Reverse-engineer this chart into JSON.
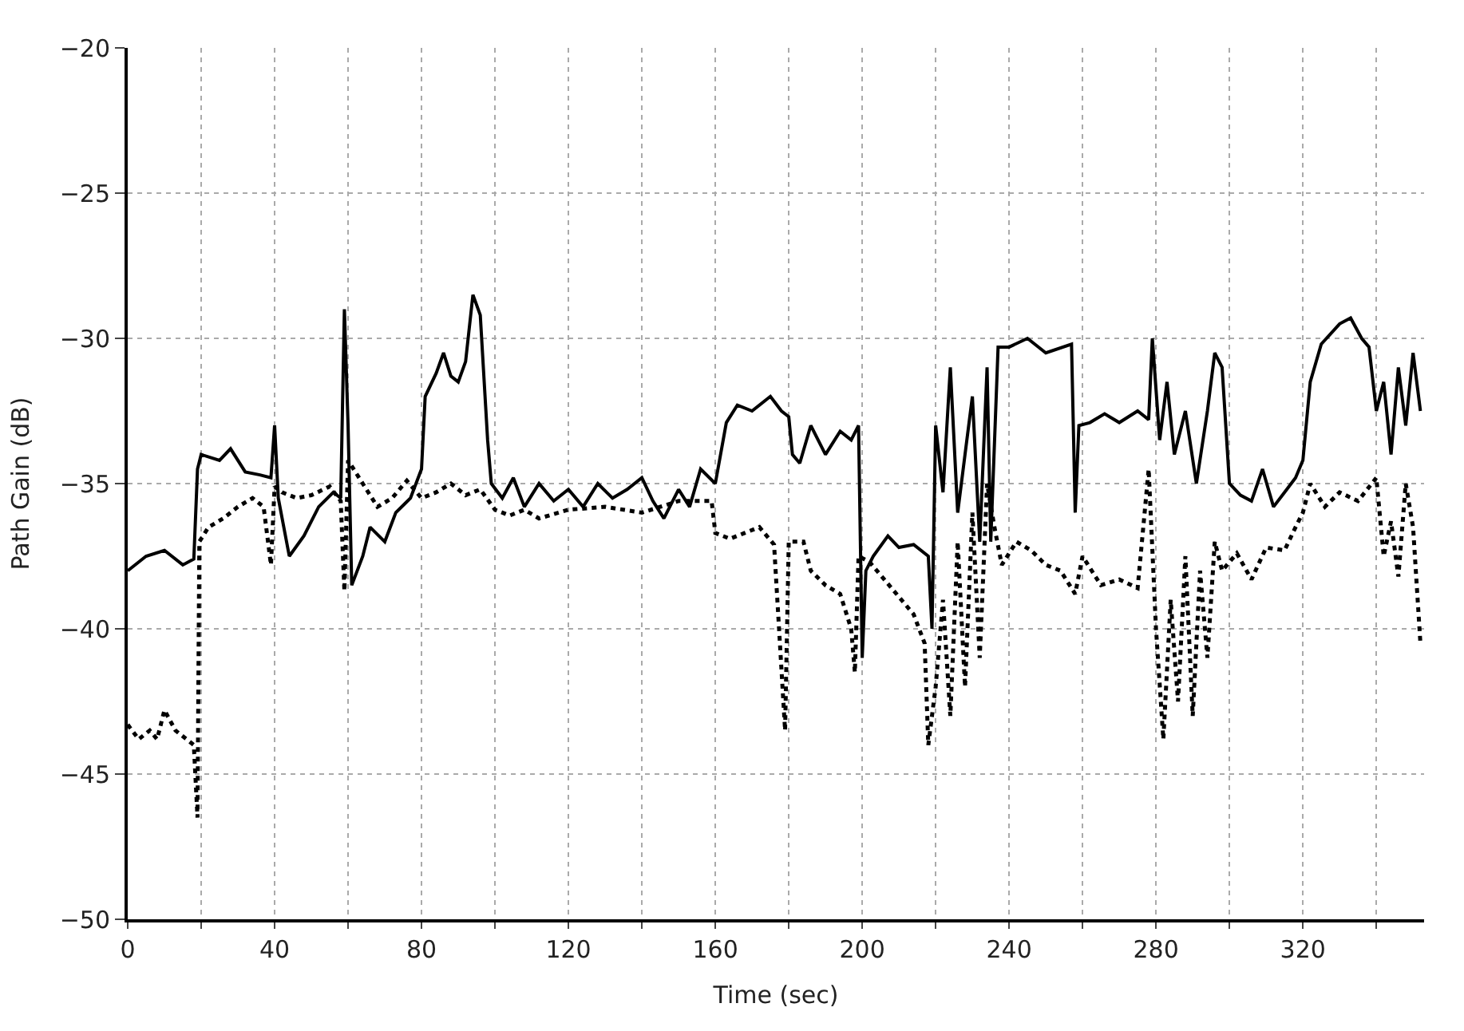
{
  "chart_data": {
    "type": "line",
    "xlabel": "Time (sec)",
    "ylabel": "Path Gain (dB)",
    "xlim": [
      0,
      353
    ],
    "ylim": [
      -50,
      -20
    ],
    "xticks": [
      0,
      {
        "value": 20,
        "label": null
      },
      40,
      {
        "value": 60,
        "label": null
      },
      80,
      {
        "value": 100,
        "label": null
      },
      120,
      {
        "value": 140,
        "label": null
      },
      160,
      {
        "value": 180,
        "label": null
      },
      200,
      {
        "value": 220,
        "label": null
      },
      240,
      {
        "value": 260,
        "label": null
      },
      280,
      {
        "value": 300,
        "label": null
      },
      320,
      {
        "value": 340,
        "label": null
      }
    ],
    "yticks": [
      {
        "value": -50,
        "label": "−50"
      },
      {
        "value": -45,
        "label": "−45"
      },
      {
        "value": -40,
        "label": "−40"
      },
      {
        "value": -35,
        "label": "−35"
      },
      {
        "value": -30,
        "label": "−30"
      },
      {
        "value": -25,
        "label": "−25"
      },
      {
        "value": -20,
        "label": "−20"
      }
    ],
    "grid": true,
    "marker": "none",
    "series": [
      {
        "color": "#000000",
        "line_style": "solid",
        "x": [
          0,
          5,
          10,
          15,
          18,
          19,
          20,
          25,
          28,
          32,
          36,
          39,
          40,
          41,
          44,
          48,
          52,
          56,
          58,
          59,
          60,
          61,
          64,
          66,
          70,
          73,
          77,
          80,
          81,
          84,
          86,
          88,
          90,
          92,
          94,
          96,
          98,
          99,
          102,
          105,
          108,
          112,
          116,
          120,
          124,
          128,
          132,
          136,
          140,
          143,
          146,
          150,
          153,
          156,
          160,
          163,
          166,
          170,
          175,
          178,
          180,
          181,
          183,
          186,
          190,
          194,
          197,
          199,
          200,
          201,
          203,
          207,
          210,
          214,
          218,
          219,
          220,
          222,
          224,
          226,
          228,
          230,
          232,
          234,
          235,
          237,
          240,
          245,
          250,
          257,
          258,
          259,
          262,
          266,
          270,
          275,
          278,
          279,
          281,
          283,
          285,
          288,
          291,
          294,
          296,
          298,
          300,
          303,
          306,
          309,
          312,
          315,
          318,
          320,
          322,
          325,
          330,
          333,
          336,
          338,
          340,
          342,
          344,
          346,
          348,
          350,
          352
        ],
        "values": [
          -38,
          -37.5,
          -37.3,
          -37.8,
          -37.6,
          -34.5,
          -34,
          -34.2,
          -33.8,
          -34.6,
          -34.7,
          -34.8,
          -33,
          -35.5,
          -37.5,
          -36.8,
          -35.8,
          -35.3,
          -35.5,
          -29,
          -33,
          -38.5,
          -37.5,
          -36.5,
          -37,
          -36,
          -35.5,
          -34.5,
          -32,
          -31.2,
          -30.5,
          -31.3,
          -31.5,
          -30.8,
          -28.5,
          -29.2,
          -33.5,
          -35,
          -35.5,
          -34.8,
          -35.8,
          -35,
          -35.6,
          -35.2,
          -35.8,
          -35,
          -35.5,
          -35.2,
          -34.8,
          -35.6,
          -36.2,
          -35.2,
          -35.8,
          -34.5,
          -35,
          -32.9,
          -32.3,
          -32.5,
          -32,
          -32.5,
          -32.7,
          -34,
          -34.3,
          -33,
          -34,
          -33.2,
          -33.5,
          -33,
          -41,
          -38,
          -37.5,
          -36.8,
          -37.2,
          -37.1,
          -37.5,
          -40,
          -33,
          -35.3,
          -31,
          -36,
          -34,
          -32,
          -37,
          -31,
          -37,
          -30.3,
          -30.3,
          -30,
          -30.5,
          -30.2,
          -36,
          -33,
          -32.9,
          -32.6,
          -32.9,
          -32.5,
          -32.8,
          -30,
          -33.5,
          -31.5,
          -34,
          -32.5,
          -35,
          -32.5,
          -30.5,
          -31,
          -35,
          -35.4,
          -35.6,
          -34.5,
          -35.8,
          -35.3,
          -34.8,
          -34.2,
          -31.5,
          -30.2,
          -29.5,
          -29.3,
          -30,
          -30.3,
          -32.5,
          -31.5,
          -34,
          -31,
          -33,
          -30.5,
          -32.5
        ]
      },
      {
        "color": "#000000",
        "line_style": "dotted",
        "x": [
          0,
          3,
          6,
          8,
          10,
          13,
          16,
          18,
          19,
          19.5,
          22,
          26,
          30,
          34,
          37,
          39,
          40,
          42,
          46,
          50,
          55,
          58,
          59,
          60,
          64,
          68,
          72,
          76,
          80,
          84,
          88,
          92,
          96,
          100,
          104,
          108,
          112,
          120,
          130,
          140,
          150,
          159,
          160,
          164,
          168,
          172,
          176,
          179,
          180,
          184,
          186,
          190,
          194,
          197,
          198,
          199,
          202,
          206,
          210,
          214,
          217,
          218,
          220,
          222,
          224,
          226,
          228,
          230,
          232,
          234,
          236,
          238,
          242,
          246,
          250,
          254,
          258,
          260,
          265,
          270,
          275,
          278,
          280,
          282,
          284,
          286,
          288,
          290,
          292,
          294,
          296,
          298,
          302,
          306,
          310,
          315,
          318,
          320,
          322,
          326,
          330,
          335,
          340,
          342,
          344,
          346,
          348,
          350,
          352
        ],
        "values": [
          -43.3,
          -43.8,
          -43.5,
          -43.8,
          -42.8,
          -43.5,
          -43.8,
          -44,
          -46.5,
          -37,
          -36.5,
          -36.2,
          -35.8,
          -35.5,
          -35.8,
          -37.8,
          -35.1,
          -35.3,
          -35.5,
          -35.4,
          -35.1,
          -35.6,
          -38.7,
          -34.2,
          -35,
          -35.8,
          -35.5,
          -34.9,
          -35.5,
          -35.3,
          -35,
          -35.4,
          -35.2,
          -35.9,
          -36.1,
          -35.9,
          -36.2,
          -35.9,
          -35.8,
          -36,
          -35.6,
          -35.6,
          -36.7,
          -36.9,
          -36.7,
          -36.5,
          -37.1,
          -43.5,
          -37,
          -37,
          -38,
          -38.5,
          -38.8,
          -40,
          -41.5,
          -37.5,
          -37.7,
          -38.3,
          -38.9,
          -39.5,
          -40.5,
          -44,
          -42,
          -39,
          -43,
          -37,
          -42,
          -36,
          -41,
          -35,
          -36.5,
          -37.8,
          -37,
          -37.3,
          -37.8,
          -38,
          -38.8,
          -37.5,
          -38.5,
          -38.3,
          -38.6,
          -34.5,
          -40,
          -43.8,
          -39,
          -42.5,
          -37.5,
          -43,
          -38,
          -41,
          -37,
          -38,
          -37.4,
          -38.3,
          -37.2,
          -37.3,
          -36.5,
          -36,
          -35,
          -35.8,
          -35.3,
          -35.6,
          -34.8,
          -37.5,
          -36.3,
          -38.2,
          -35,
          -36.5,
          -40.5
        ]
      }
    ]
  }
}
